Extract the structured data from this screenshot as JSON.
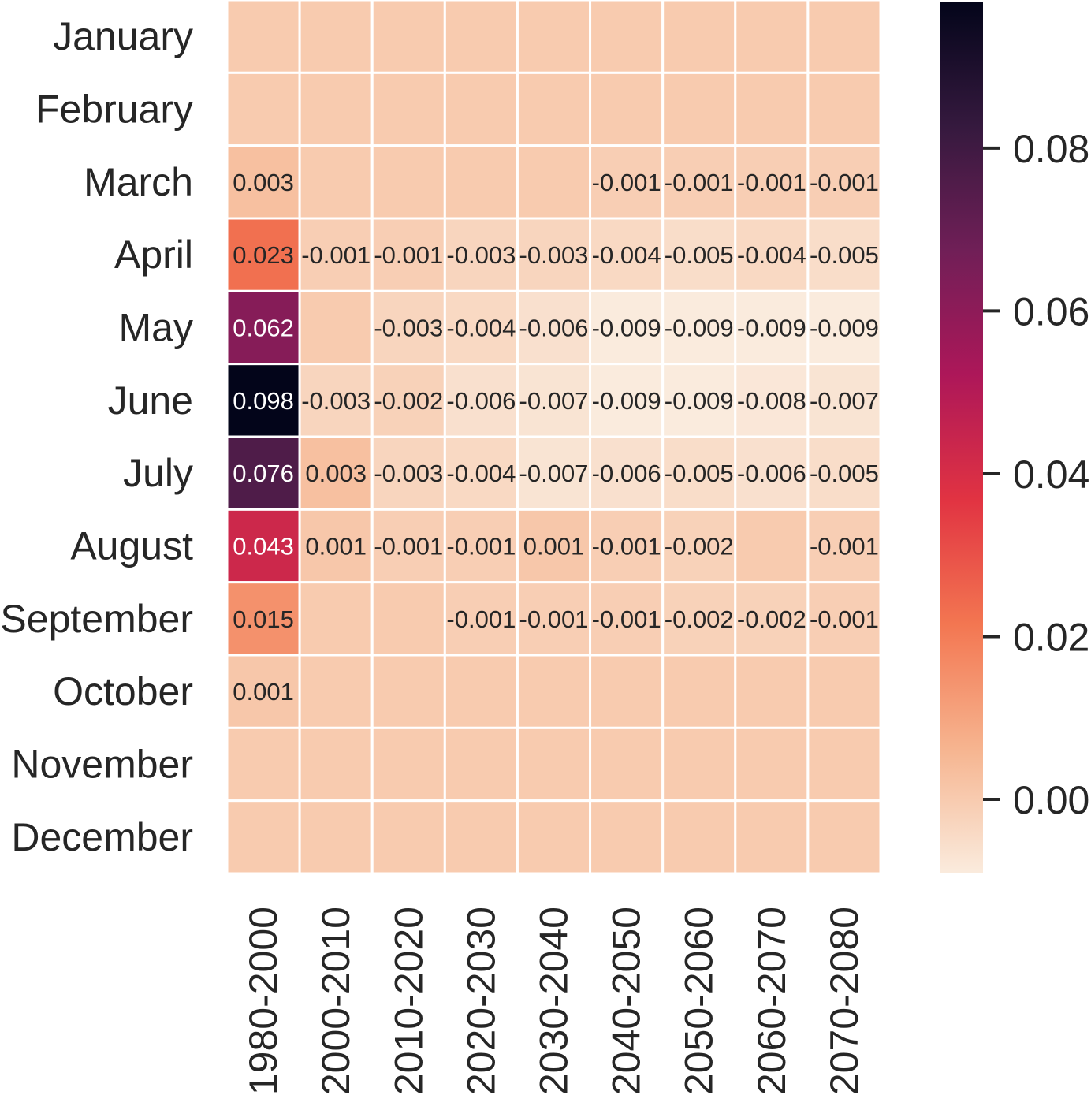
{
  "chart_data": {
    "type": "heatmap",
    "title": "",
    "xlabel": "",
    "ylabel": "",
    "rows": [
      "January",
      "February",
      "March",
      "April",
      "May",
      "June",
      "July",
      "August",
      "September",
      "October",
      "November",
      "December"
    ],
    "columns": [
      "1980-2000",
      "2000-2010",
      "2010-2020",
      "2020-2030",
      "2030-2040",
      "2040-2050",
      "2050-2060",
      "2060-2070",
      "2070-2080"
    ],
    "values": [
      [
        0,
        0,
        0,
        0,
        0,
        0,
        0,
        0,
        0
      ],
      [
        0,
        0,
        0,
        0,
        0,
        0,
        0,
        0,
        0
      ],
      [
        0.003,
        0,
        0,
        0,
        0,
        -0.001,
        -0.001,
        -0.001,
        -0.001
      ],
      [
        0.023,
        -0.001,
        -0.001,
        -0.003,
        -0.003,
        -0.004,
        -0.005,
        -0.004,
        -0.005
      ],
      [
        0.062,
        0,
        -0.003,
        -0.004,
        -0.006,
        -0.009,
        -0.009,
        -0.009,
        -0.009
      ],
      [
        0.098,
        -0.003,
        -0.002,
        -0.006,
        -0.007,
        -0.009,
        -0.009,
        -0.008,
        -0.007
      ],
      [
        0.076,
        0.003,
        -0.003,
        -0.004,
        -0.007,
        -0.006,
        -0.005,
        -0.006,
        -0.005
      ],
      [
        0.043,
        0.001,
        -0.001,
        -0.001,
        0.001,
        -0.001,
        -0.002,
        0,
        -0.001
      ],
      [
        0.015,
        0,
        0,
        -0.001,
        -0.001,
        -0.001,
        -0.002,
        -0.002,
        -0.001
      ],
      [
        0.001,
        0,
        0,
        0,
        0,
        0,
        0,
        0,
        0
      ],
      [
        0,
        0,
        0,
        0,
        0,
        0,
        0,
        0,
        0
      ],
      [
        0,
        0,
        0,
        0,
        0,
        0,
        0,
        0,
        0
      ]
    ],
    "annotations": [
      [
        "",
        "",
        "",
        "",
        "",
        "",
        "",
        "",
        ""
      ],
      [
        "",
        "",
        "",
        "",
        "",
        "",
        "",
        "",
        ""
      ],
      [
        "0.003",
        "",
        "",
        "",
        "",
        "-0.001",
        "-0.001",
        "-0.001",
        "-0.001"
      ],
      [
        "0.023",
        "-0.001",
        "-0.001",
        "-0.003",
        "-0.003",
        "-0.004",
        "-0.005",
        "-0.004",
        "-0.005"
      ],
      [
        "0.062",
        "",
        "-0.003",
        "-0.004",
        "-0.006",
        "-0.009",
        "-0.009",
        "-0.009",
        "-0.009"
      ],
      [
        "0.098",
        "-0.003",
        "-0.002",
        "-0.006",
        "-0.007",
        "-0.009",
        "-0.009",
        "-0.008",
        "-0.007"
      ],
      [
        "0.076",
        "0.003",
        "-0.003",
        "-0.004",
        "-0.007",
        "-0.006",
        "-0.005",
        "-0.006",
        "-0.005"
      ],
      [
        "0.043",
        "0.001",
        "-0.001",
        "-0.001",
        "0.001",
        "-0.001",
        "-0.002",
        "",
        "-0.001"
      ],
      [
        "0.015",
        "",
        "",
        "-0.001",
        "-0.001",
        "-0.001",
        "-0.002",
        "-0.002",
        "-0.001"
      ],
      [
        "0.001",
        "",
        "",
        "",
        "",
        "",
        "",
        "",
        ""
      ],
      [
        "",
        "",
        "",
        "",
        "",
        "",
        "",
        "",
        ""
      ],
      [
        "",
        "",
        "",
        "",
        "",
        "",
        "",
        "",
        ""
      ]
    ],
    "colorbar": {
      "vmin": -0.009,
      "vmax": 0.098,
      "ticks": [
        0.0,
        0.02,
        0.04,
        0.06,
        0.08
      ],
      "tick_labels": [
        "0.00",
        "0.02",
        "0.04",
        "0.06",
        "0.08"
      ],
      "colormap": "rocket_r",
      "color_stops": [
        "#faebdd",
        "#f6b48f",
        "#f37651",
        "#e13342",
        "#ad1759",
        "#701f57",
        "#35193e",
        "#03051a"
      ]
    },
    "annotation_text_colors": {
      "light": "#ffffff",
      "dark": "#262626"
    },
    "grid_line_color": "#ffffff",
    "legend": "right"
  }
}
